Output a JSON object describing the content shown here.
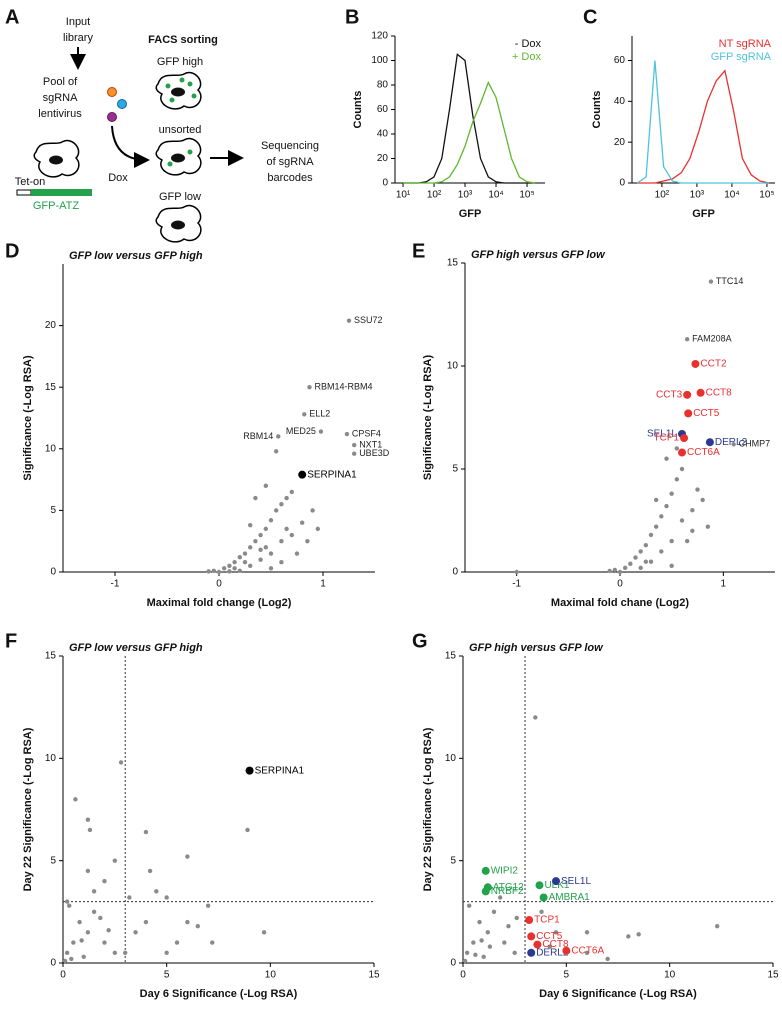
{
  "schematic": {
    "panel": "A",
    "input_library": [
      "Input",
      "library"
    ],
    "pool": [
      "Pool of",
      "sgRNA",
      "lentivirus"
    ],
    "facs": "FACS sorting",
    "gfp_high": "GFP high",
    "unsorted": "unsorted",
    "gfp_low": "GFP low",
    "dox": "Dox",
    "sequencing": [
      "Sequencing",
      "of sgRNA",
      "barcodes"
    ],
    "tet_on": "Tet-on",
    "construct": "GFP-ATZ"
  },
  "chart_data": [
    {
      "type": "line",
      "panel": "B",
      "x_label": "GFP",
      "y_label": "Counts",
      "xscale": "log",
      "xlim": [
        5.5,
        380000
      ],
      "ylim": [
        0,
        120
      ],
      "xticks": [
        {
          "value": 10,
          "label": "10¹"
        },
        {
          "value": 100,
          "label": "10²"
        },
        {
          "value": 1000,
          "label": "10³"
        },
        {
          "value": 10000,
          "label": "10⁴"
        },
        {
          "value": 100000,
          "label": "10⁵"
        }
      ],
      "yticks": [
        0,
        20,
        40,
        60,
        80,
        100,
        120
      ],
      "x": [
        10,
        17.8,
        31.6,
        56.2,
        100,
        178,
        316,
        562,
        1000,
        1778,
        3162,
        5623,
        10000,
        17783,
        31623,
        56234,
        100000,
        177828
      ],
      "series": [
        {
          "name": "- Dox",
          "color": "#111111",
          "values": [
            0,
            0,
            0,
            1,
            5,
            20,
            60,
            105,
            100,
            55,
            20,
            5,
            1,
            0,
            0,
            0,
            0,
            0
          ]
        },
        {
          "name": "+ Dox",
          "color": "#5cb82e",
          "values": [
            0,
            0,
            0,
            0,
            0,
            1,
            5,
            15,
            30,
            50,
            65,
            82,
            70,
            45,
            20,
            5,
            1,
            0
          ]
        }
      ]
    },
    {
      "type": "line",
      "panel": "C",
      "x_label": "GFP",
      "y_label": "Counts",
      "xscale": "log",
      "xlim": [
        14,
        170000
      ],
      "ylim": [
        0,
        72
      ],
      "xticks": [
        {
          "value": 100,
          "label": "10²"
        },
        {
          "value": 1000,
          "label": "10³"
        },
        {
          "value": 10000,
          "label": "10⁴"
        },
        {
          "value": 100000,
          "label": "10⁵"
        }
      ],
      "yticks": [
        0,
        20,
        40,
        60
      ],
      "x": [
        20,
        35.5,
        63,
        112,
        200,
        355,
        631,
        1122,
        1995,
        3548,
        6310,
        11220,
        19953,
        35481,
        63096,
        112202
      ],
      "series": [
        {
          "name": "NT sgRNA",
          "color": "#e8312f",
          "values": [
            0,
            0,
            0,
            1,
            2,
            5,
            12,
            25,
            40,
            50,
            55,
            35,
            12,
            4,
            1,
            0
          ]
        },
        {
          "name": "GFP sgRNA",
          "color": "#4fc3dc",
          "values": [
            0,
            3,
            60,
            8,
            1,
            0,
            0,
            0,
            0,
            0,
            0,
            0,
            0,
            0,
            0,
            0
          ]
        }
      ]
    },
    {
      "type": "scatter",
      "panel": "D",
      "title": "GFP low versus GFP high",
      "x_label": "Maximal fold change (Log2)",
      "y_label": "Significance (-Log RSA)",
      "xlim": [
        -1.5,
        1.5
      ],
      "ylim": [
        0,
        25
      ],
      "xticks": [
        -1,
        0,
        1
      ],
      "yticks": [
        0,
        5,
        10,
        15,
        20
      ],
      "points_color": "#8a8a8a",
      "points": {
        "x": [
          0,
          0.05,
          0.1,
          0.15,
          0.2,
          0.25,
          0.3,
          0.35,
          0.4,
          0.45,
          0.5,
          0.55,
          0.6,
          0.65,
          0.7,
          0.3,
          0.4,
          0.5,
          0.6,
          0.7,
          0.8,
          0.9,
          0.5,
          0.6,
          0.75,
          0.85,
          0.2,
          0.1,
          -0.05,
          -0.1,
          0.35,
          0.45,
          0.55,
          0.4,
          0.3,
          0.25,
          0.45,
          0.15,
          0.65,
          0.95
        ],
        "y": [
          0,
          0.3,
          0.5,
          0.8,
          1.2,
          1.5,
          2,
          2.5,
          3,
          3.5,
          4.2,
          5,
          5.5,
          6,
          6.5,
          0.5,
          1,
          1.5,
          2.5,
          3,
          4,
          5,
          0.3,
          0.8,
          1.5,
          2.5,
          0.1,
          0.05,
          0.1,
          0.05,
          6,
          7,
          9.8,
          1.8,
          3.8,
          0.8,
          2,
          0.3,
          3.5,
          3.5
        ]
      },
      "highlighted": [
        {
          "label": "SSU72",
          "x": 1.25,
          "y": 20.4,
          "color": "#8a8a8a"
        },
        {
          "label": "RBM14-RBM4",
          "x": 0.87,
          "y": 15,
          "color": "#8a8a8a"
        },
        {
          "label": "ELL2",
          "x": 0.82,
          "y": 12.8,
          "color": "#8a8a8a"
        },
        {
          "label": "MED25",
          "x": 0.98,
          "y": 11.4,
          "color": "#8a8a8a"
        },
        {
          "label": "CPSF4",
          "x": 1.23,
          "y": 11.2,
          "color": "#8a8a8a"
        },
        {
          "label": "RBM14",
          "x": 0.57,
          "y": 11,
          "color": "#8a8a8a"
        },
        {
          "label": "NXT1",
          "x": 1.3,
          "y": 10.3,
          "color": "#8a8a8a"
        },
        {
          "label": "UBE3D",
          "x": 1.3,
          "y": 9.6,
          "color": "#8a8a8a"
        },
        {
          "label": "SERPINA1",
          "x": 0.8,
          "y": 7.9,
          "color": "#000000"
        }
      ]
    },
    {
      "type": "scatter",
      "panel": "E",
      "title": "GFP high versus GFP low",
      "x_label": "Maximal fold chane (Log2)",
      "y_label": "Significance (-Log RSA)",
      "xlim": [
        -1.5,
        1.5
      ],
      "ylim": [
        0,
        15
      ],
      "xticks": [
        -1,
        0,
        1
      ],
      "yticks": [
        0,
        5,
        10,
        15
      ],
      "points_color": "#8a8a8a",
      "points": {
        "x": [
          0,
          0.05,
          0.1,
          0.15,
          0.2,
          0.25,
          0.3,
          0.35,
          0.4,
          0.45,
          0.5,
          0.55,
          0.6,
          0.3,
          0.4,
          0.5,
          0.6,
          0.7,
          0.75,
          0.8,
          0.5,
          0.65,
          0.7,
          0.2,
          -0.1,
          -0.05,
          0.45,
          0.55,
          0.35,
          0.25,
          0.85,
          -1
        ],
        "y": [
          0,
          0.2,
          0.4,
          0.7,
          1,
          1.3,
          1.8,
          2.2,
          2.7,
          3.2,
          3.8,
          4.5,
          5,
          0.5,
          1,
          1.5,
          2.5,
          3,
          4,
          3.5,
          0.3,
          1.5,
          2,
          0.2,
          0.05,
          0.1,
          5.5,
          6,
          3.5,
          0.5,
          2.2,
          0
        ]
      },
      "highlighted": [
        {
          "label": "TTC14",
          "x": 0.88,
          "y": 14.1,
          "color": "#8a8a8a"
        },
        {
          "label": "FAM208A",
          "x": 0.65,
          "y": 11.3,
          "color": "#8a8a8a"
        },
        {
          "label": "CCT2",
          "x": 0.73,
          "y": 10.1,
          "color": "#e8312f"
        },
        {
          "label": "CCT8",
          "x": 0.78,
          "y": 8.7,
          "color": "#e8312f"
        },
        {
          "label": "CCT3",
          "x": 0.65,
          "y": 8.6,
          "color": "#e8312f"
        },
        {
          "label": "CCT5",
          "x": 0.66,
          "y": 7.7,
          "color": "#e8312f"
        },
        {
          "label": "SEL1L",
          "x": 0.6,
          "y": 6.7,
          "color": "#2b3990"
        },
        {
          "label": "DERL2",
          "x": 0.87,
          "y": 6.3,
          "color": "#2b3990"
        },
        {
          "label": "TCP1",
          "x": 0.62,
          "y": 6.5,
          "color": "#e8312f"
        },
        {
          "label": "CCT6A",
          "x": 0.6,
          "y": 5.8,
          "color": "#e8312f"
        },
        {
          "label": "CHMP7",
          "x": 1.1,
          "y": 6.2,
          "color": "#8a8a8a"
        }
      ]
    },
    {
      "type": "scatter",
      "panel": "F",
      "title": "GFP low versus GFP high",
      "x_label": "Day 6 Significance (-Log RSA)",
      "y_label": "Day 22 Significance (-Log RSA)",
      "xlim": [
        0,
        15
      ],
      "ylim": [
        0,
        15
      ],
      "xticks": [
        0,
        5,
        10,
        15
      ],
      "yticks": [
        0,
        5,
        10,
        15
      ],
      "points_color": "#8a8a8a",
      "thresholds": {
        "x": 3,
        "y": 3
      },
      "points": {
        "x": [
          0.2,
          0.5,
          0.8,
          1,
          1.2,
          1.5,
          2,
          2.5,
          0.3,
          0.6,
          1.2,
          1.3,
          2.8,
          2.5,
          1.5,
          2,
          1.2,
          4,
          4.2,
          4.5,
          5,
          6,
          7,
          9.7,
          8.9,
          3.5,
          4,
          5.5,
          6.5,
          7.2,
          3,
          0.1,
          0.4,
          1.8,
          2.2,
          0.9,
          3.2,
          5,
          0.2,
          6
        ],
        "y": [
          0.5,
          1,
          2,
          0.3,
          1.5,
          2.5,
          1,
          0.5,
          2.8,
          8,
          7,
          6.5,
          9.8,
          5,
          3.5,
          4,
          4.5,
          6.4,
          4.5,
          3.5,
          3.2,
          5.2,
          2.8,
          1.5,
          6.5,
          1.5,
          2,
          1,
          1.8,
          1,
          0.5,
          0.1,
          0.2,
          2.2,
          1.6,
          1.1,
          3.2,
          0.5,
          3,
          2
        ]
      },
      "highlighted": [
        {
          "label": "SERPINA1",
          "x": 9,
          "y": 9.4,
          "color": "#000000"
        }
      ]
    },
    {
      "type": "scatter",
      "panel": "G",
      "title": "GFP high versus GFP low",
      "x_label": "Day 6 Significance (-Log RSA)",
      "y_label": "Day 22 Significance (-Log RSA)",
      "xlim": [
        0,
        15
      ],
      "ylim": [
        0,
        15
      ],
      "xticks": [
        0,
        5,
        10,
        15
      ],
      "yticks": [
        0,
        5,
        10,
        15
      ],
      "points_color": "#8a8a8a",
      "thresholds": {
        "x": 3,
        "y": 3
      },
      "points": {
        "x": [
          0.2,
          0.5,
          0.8,
          1,
          1.2,
          1.5,
          2,
          2.5,
          0.3,
          1.8,
          3.5,
          2.2,
          4.5,
          6,
          7,
          8,
          8.5,
          12.3,
          6,
          3.8,
          0.1,
          0.9,
          2.6,
          1.3,
          0.6,
          4.2
        ],
        "y": [
          0.5,
          1,
          2,
          0.3,
          1.5,
          2.5,
          1,
          0.5,
          2.8,
          3.2,
          12,
          1.8,
          1.5,
          1.5,
          0.2,
          1.3,
          1.4,
          1.8,
          0.5,
          2.5,
          0.1,
          1.1,
          2.2,
          0.8,
          0.4,
          0.8
        ]
      },
      "highlighted": [
        {
          "label": "WIPI2",
          "x": 1.1,
          "y": 4.5,
          "color": "#22a24a"
        },
        {
          "label": "ATG12",
          "x": 1.2,
          "y": 3.7,
          "color": "#22a24a"
        },
        {
          "label": "NRBF2",
          "x": 1.1,
          "y": 3.5,
          "color": "#22a24a"
        },
        {
          "label": "ULK1",
          "x": 3.7,
          "y": 3.8,
          "color": "#22a24a"
        },
        {
          "label": "AMBRA1",
          "x": 3.9,
          "y": 3.2,
          "color": "#22a24a"
        },
        {
          "label": "SEL1L",
          "x": 4.5,
          "y": 4.0,
          "color": "#2b3990"
        },
        {
          "label": "TCP1",
          "x": 3.2,
          "y": 2.1,
          "color": "#e8312f"
        },
        {
          "label": "CCT5",
          "x": 3.3,
          "y": 1.3,
          "color": "#e8312f"
        },
        {
          "label": "CCT8",
          "x": 3.6,
          "y": 0.9,
          "color": "#e8312f"
        },
        {
          "label": "DERL2",
          "x": 3.3,
          "y": 0.5,
          "color": "#2b3990"
        },
        {
          "label": "CCT6A",
          "x": 5,
          "y": 0.6,
          "color": "#e8312f"
        }
      ]
    }
  ]
}
